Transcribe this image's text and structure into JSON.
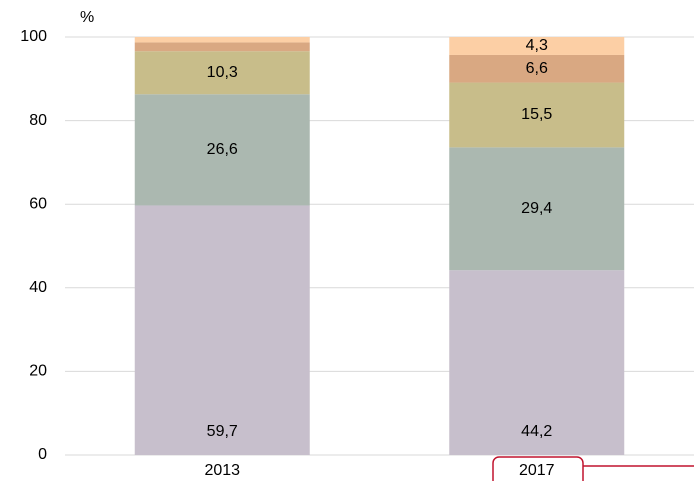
{
  "chart_data": {
    "type": "stacked_bar",
    "y_label": "%",
    "categories": [
      "2013",
      "2017"
    ],
    "series": [
      {
        "color": "#c7bfcc",
        "values": [
          59.7,
          44.2
        ],
        "value_labels": [
          "59,7",
          "44,2"
        ]
      },
      {
        "color": "#abb8b0",
        "values": [
          26.6,
          29.4
        ],
        "value_labels": [
          "26,6",
          "29,4"
        ]
      },
      {
        "color": "#c8bd8a",
        "values": [
          10.3,
          15.5
        ],
        "value_labels": [
          "10,3",
          "15,5"
        ]
      },
      {
        "color": "#d9a882",
        "values": [
          2.1,
          6.6
        ],
        "value_labels": [
          null,
          "6,6"
        ]
      },
      {
        "color": "#fccfa5",
        "values": [
          1.3,
          4.3
        ],
        "value_labels": [
          null,
          "4,3"
        ]
      }
    ],
    "ylim": [
      0,
      100
    ],
    "yticks": [
      0,
      20,
      40,
      60,
      80,
      100
    ],
    "grid": true
  }
}
